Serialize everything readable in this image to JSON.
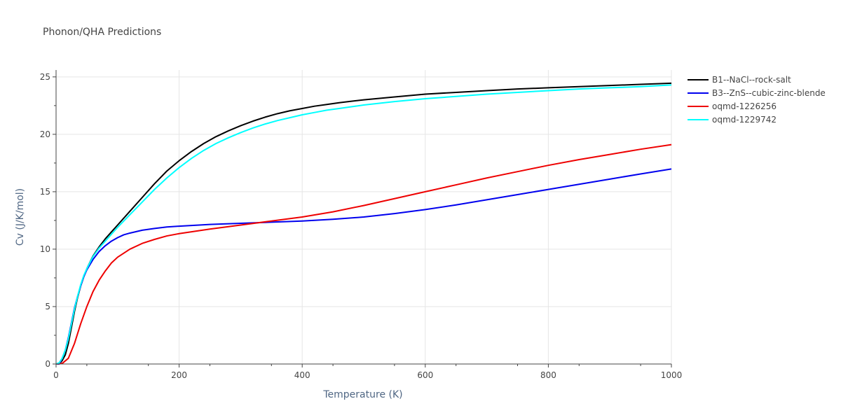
{
  "chart_data": {
    "type": "line",
    "title": "Phonon/QHA Predictions",
    "xlabel": "Temperature (K)",
    "ylabel": "Cv (J/K/mol)",
    "xlim": [
      0,
      1000
    ],
    "ylim": [
      0,
      25.6
    ],
    "xticks": [
      0,
      200,
      400,
      600,
      800,
      1000
    ],
    "yticks": [
      0,
      5,
      10,
      15,
      20,
      25
    ],
    "grid": true,
    "legend_position": "top-right",
    "series": [
      {
        "name": "B1--NaCl--rock-salt",
        "color": "#000000",
        "x": [
          0,
          5,
          10,
          15,
          20,
          25,
          30,
          35,
          40,
          45,
          50,
          60,
          70,
          80,
          90,
          100,
          120,
          140,
          160,
          180,
          200,
          220,
          240,
          260,
          280,
          300,
          320,
          340,
          360,
          380,
          400,
          420,
          440,
          460,
          480,
          500,
          550,
          600,
          650,
          700,
          750,
          800,
          850,
          900,
          950,
          1000
        ],
        "y": [
          0,
          0,
          0.3,
          0.8,
          1.8,
          3.2,
          4.6,
          5.8,
          6.8,
          7.6,
          8.3,
          9.4,
          10.2,
          10.9,
          11.5,
          12.1,
          13.3,
          14.5,
          15.7,
          16.8,
          17.7,
          18.5,
          19.2,
          19.8,
          20.3,
          20.75,
          21.15,
          21.5,
          21.8,
          22.05,
          22.25,
          22.45,
          22.6,
          22.75,
          22.88,
          23.0,
          23.25,
          23.5,
          23.65,
          23.8,
          23.95,
          24.05,
          24.15,
          24.25,
          24.35,
          24.45
        ]
      },
      {
        "name": "B3--ZnS--cubic-zinc-blende",
        "color": "#0000ee",
        "x": [
          0,
          5,
          10,
          15,
          20,
          25,
          30,
          35,
          40,
          45,
          50,
          60,
          70,
          80,
          90,
          100,
          110,
          120,
          140,
          160,
          180,
          200,
          250,
          300,
          350,
          400,
          450,
          500,
          550,
          600,
          650,
          700,
          750,
          800,
          850,
          900,
          950,
          1000
        ],
        "y": [
          0,
          0,
          0.5,
          1.2,
          2.3,
          3.6,
          4.9,
          5.9,
          6.8,
          7.6,
          8.2,
          9.1,
          9.8,
          10.3,
          10.7,
          11.0,
          11.25,
          11.4,
          11.65,
          11.8,
          11.93,
          12.0,
          12.15,
          12.25,
          12.35,
          12.45,
          12.6,
          12.8,
          13.1,
          13.45,
          13.85,
          14.3,
          14.75,
          15.2,
          15.65,
          16.1,
          16.55,
          16.98
        ]
      },
      {
        "name": "oqmd-1226256",
        "color": "#ee0000",
        "x": [
          0,
          10,
          20,
          30,
          40,
          50,
          60,
          70,
          80,
          90,
          100,
          120,
          140,
          160,
          180,
          200,
          250,
          300,
          350,
          400,
          450,
          500,
          550,
          600,
          650,
          700,
          750,
          800,
          850,
          900,
          950,
          1000
        ],
        "y": [
          0,
          0.05,
          0.5,
          1.8,
          3.5,
          5.0,
          6.3,
          7.3,
          8.1,
          8.8,
          9.3,
          10.0,
          10.5,
          10.85,
          11.15,
          11.35,
          11.75,
          12.1,
          12.45,
          12.8,
          13.25,
          13.8,
          14.4,
          15.0,
          15.6,
          16.2,
          16.75,
          17.3,
          17.8,
          18.25,
          18.7,
          19.1
        ]
      },
      {
        "name": "oqmd-1229742",
        "color": "#00ffff",
        "x": [
          0,
          5,
          10,
          15,
          20,
          25,
          30,
          35,
          40,
          45,
          50,
          60,
          70,
          80,
          90,
          100,
          120,
          140,
          160,
          180,
          200,
          220,
          240,
          260,
          280,
          300,
          320,
          340,
          360,
          380,
          400,
          420,
          440,
          460,
          480,
          500,
          550,
          600,
          650,
          700,
          750,
          800,
          850,
          900,
          950,
          1000
        ],
        "y": [
          0,
          0.1,
          0.5,
          1.2,
          2.2,
          3.5,
          4.8,
          5.9,
          6.9,
          7.7,
          8.3,
          9.35,
          10.1,
          10.7,
          11.3,
          11.9,
          13.0,
          14.1,
          15.2,
          16.2,
          17.1,
          17.9,
          18.6,
          19.2,
          19.7,
          20.15,
          20.55,
          20.9,
          21.2,
          21.45,
          21.7,
          21.9,
          22.1,
          22.25,
          22.4,
          22.55,
          22.85,
          23.1,
          23.3,
          23.5,
          23.65,
          23.8,
          23.95,
          24.05,
          24.15,
          24.3
        ]
      }
    ]
  }
}
